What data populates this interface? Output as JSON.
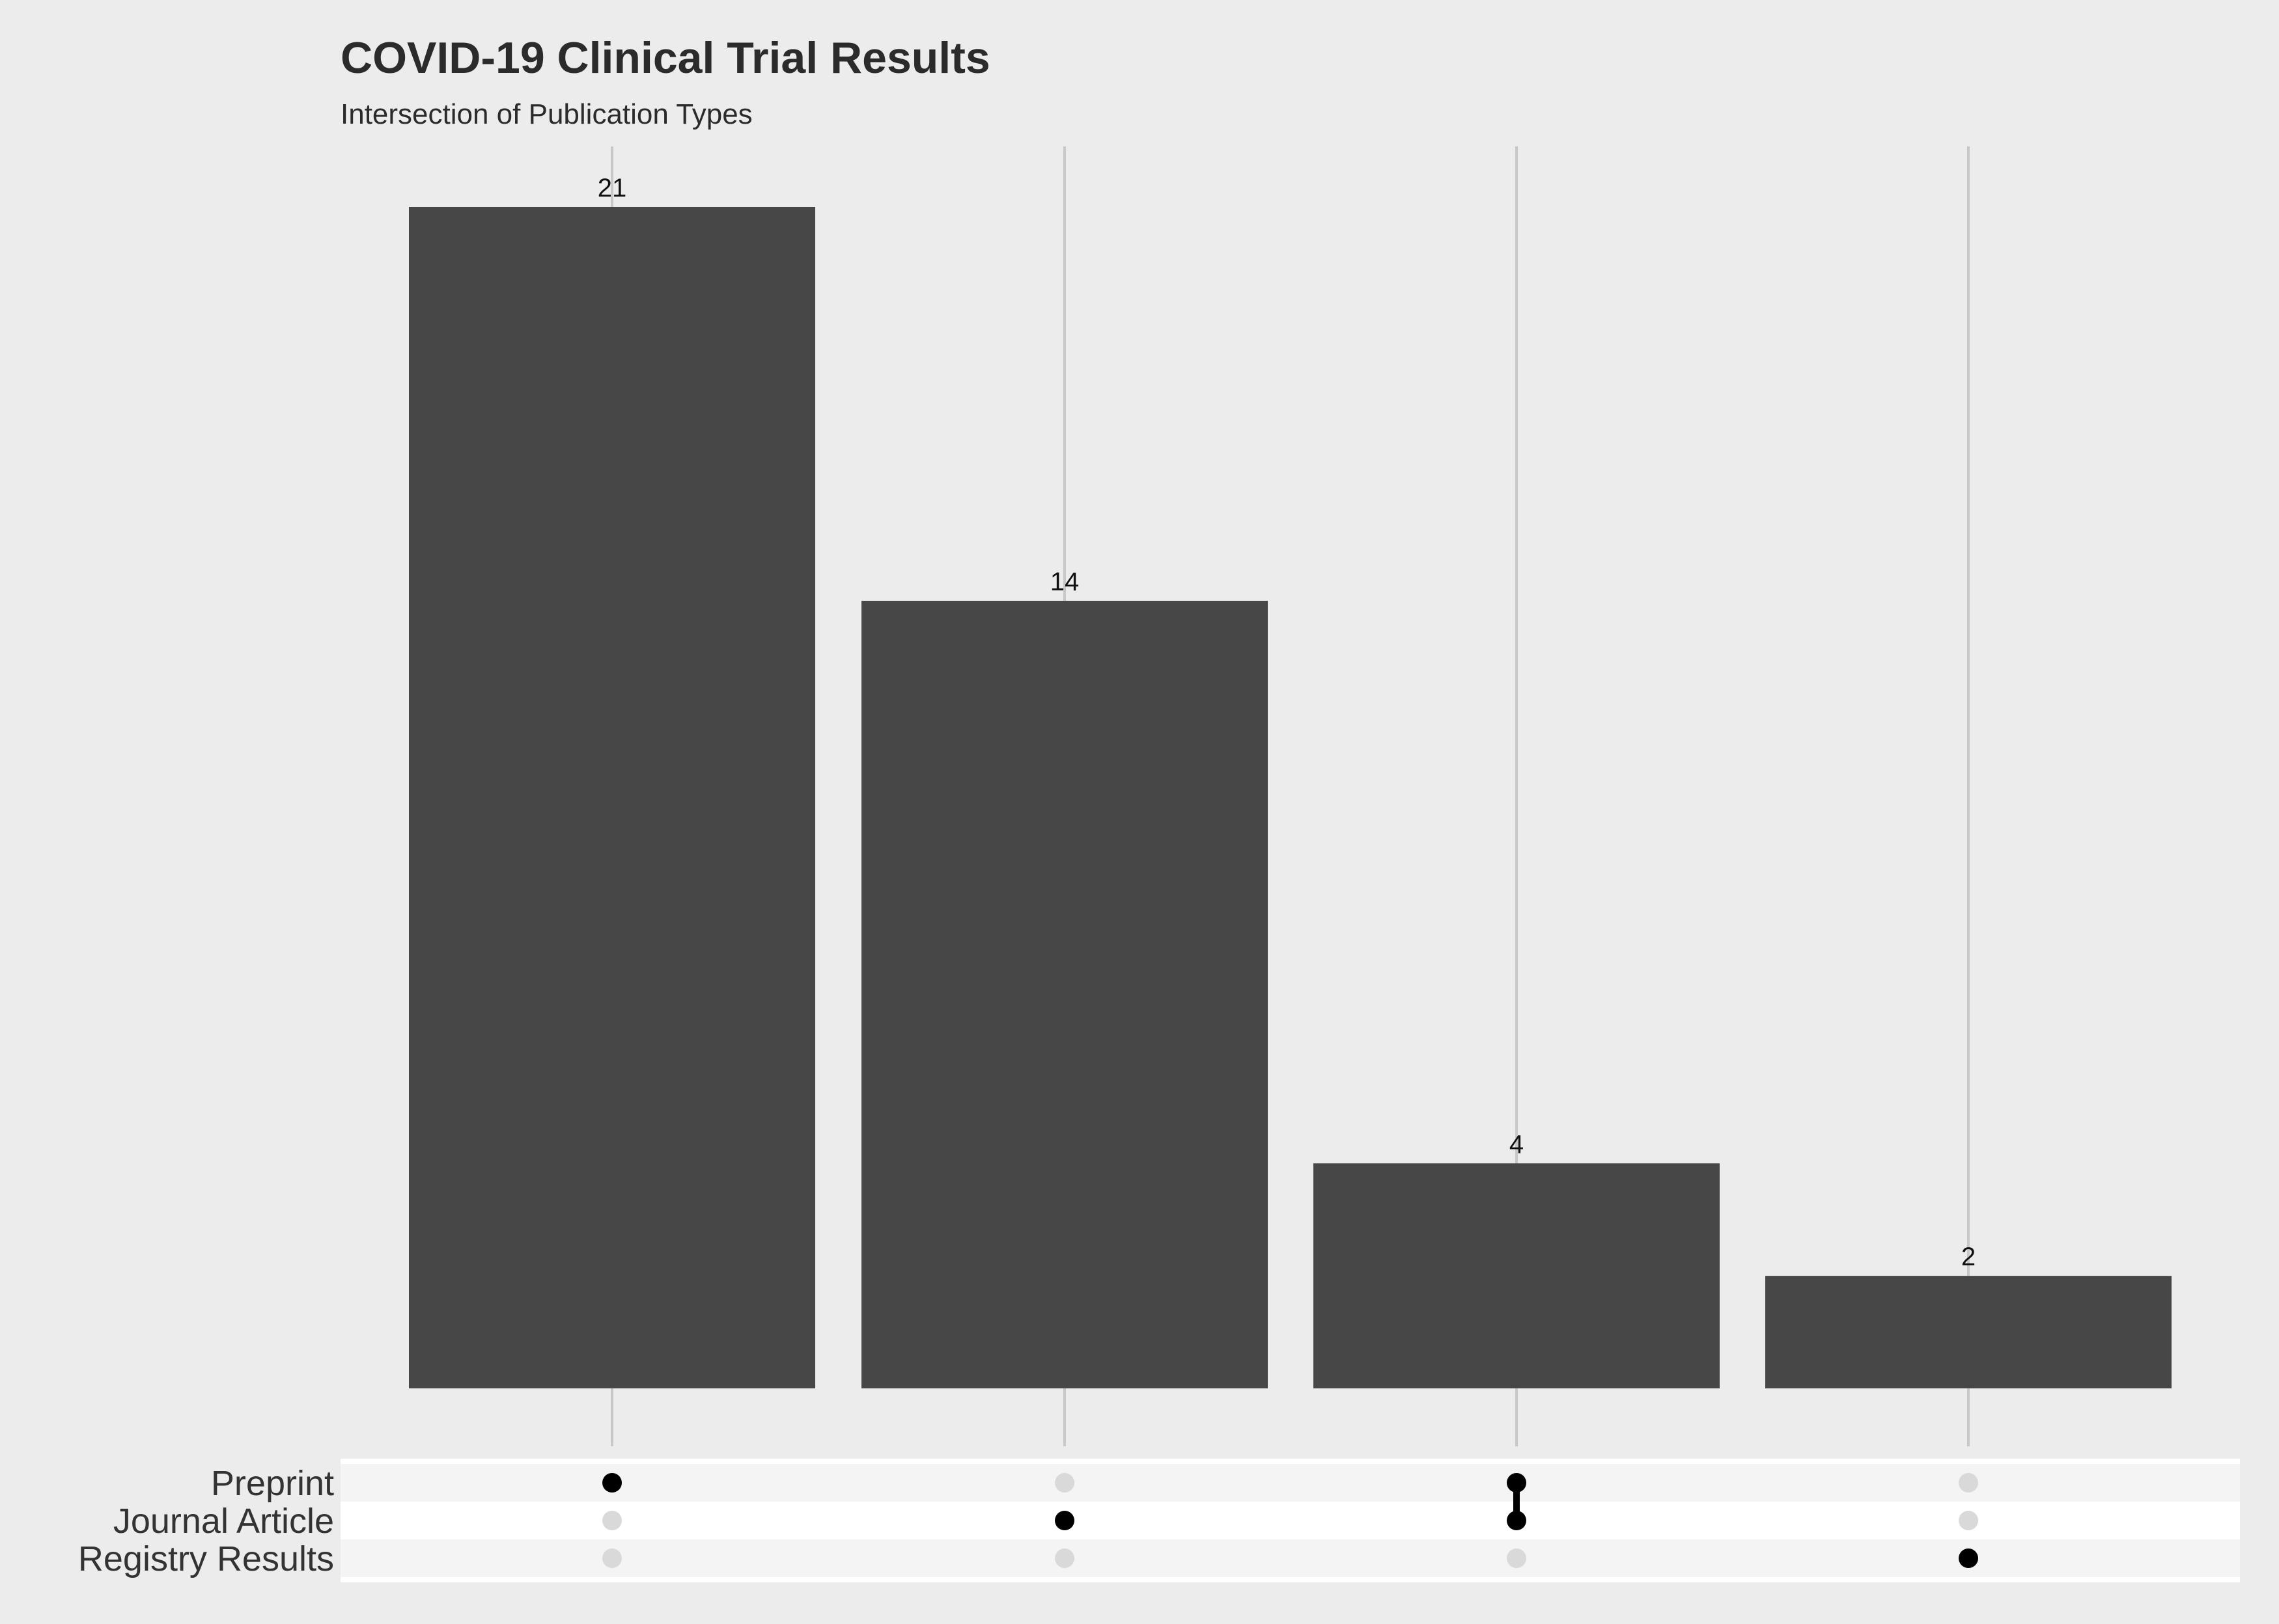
{
  "chart_data": {
    "type": "bar",
    "title": "COVID-19 Clinical Trial Results",
    "subtitle": "Intersection of Publication Types",
    "sets": [
      "Preprint",
      "Journal Article",
      "Registry Results"
    ],
    "intersections": [
      {
        "members": [
          "Preprint"
        ],
        "value": 21
      },
      {
        "members": [
          "Journal Article"
        ],
        "value": 14
      },
      {
        "members": [
          "Preprint",
          "Journal Article"
        ],
        "value": 4
      },
      {
        "members": [
          "Registry Results"
        ],
        "value": 2
      }
    ],
    "ylim": [
      0,
      22
    ],
    "grid": "vertical",
    "colors": {
      "background": "#ececec",
      "bar": "#474747",
      "gridline": "#c8c8c8",
      "dot_active": "#000000",
      "dot_inactive": "#d9d9d9",
      "matrix_stripe_dark": "#f4f4f4",
      "matrix_stripe_light": "#ffffff"
    }
  }
}
